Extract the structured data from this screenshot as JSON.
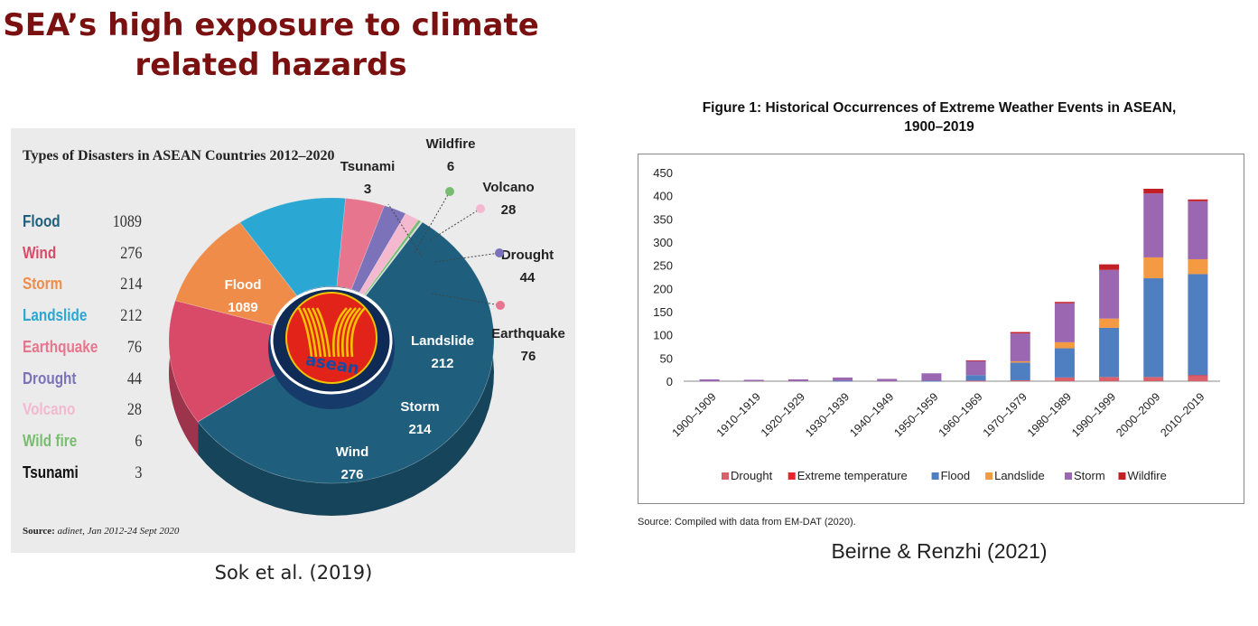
{
  "slide": {
    "title_line1": "SEA’s high exposure to climate",
    "title_line2": "related hazards",
    "caption_left": "Sok et al. (2019)",
    "caption_right": "Beirne & Renzhi (2021)"
  },
  "chart_data": [
    {
      "type": "pie",
      "title": "Types of Disasters in ASEAN Countries 2012–2020",
      "source_label": "Source:",
      "source_text": "adinet, Jan 2012-24 Sept 2020",
      "center_logo_text": "asean",
      "slices": [
        {
          "label": "Flood",
          "value": 1089,
          "color": "#1f5f7d",
          "legend_label": "Flood"
        },
        {
          "label": "Wind",
          "value": 276,
          "color": "#d84a68",
          "legend_label": "Wind"
        },
        {
          "label": "Storm",
          "value": 214,
          "color": "#ef8c49",
          "legend_label": "Storm"
        },
        {
          "label": "Landslide",
          "value": 212,
          "color": "#2aa7d3",
          "legend_label": "Landslide"
        },
        {
          "label": "Earthquake",
          "value": 76,
          "color": "#e7758d",
          "legend_label": "Earthquake"
        },
        {
          "label": "Drought",
          "value": 44,
          "color": "#7b72b9",
          "legend_label": "Drought"
        },
        {
          "label": "Volcano",
          "value": 28,
          "color": "#f4b8cf",
          "legend_label": "Volcano"
        },
        {
          "label": "Wildfire",
          "value": 6,
          "color": "#78bd6f",
          "legend_label": "Wild fire"
        },
        {
          "label": "Tsunami",
          "value": 3,
          "color": "#d9d9d9",
          "legend_label": "Tsunami"
        }
      ],
      "legend_colors": [
        "#1f5f7d",
        "#d84a68",
        "#ef8c49",
        "#2aa7d3",
        "#e7758d",
        "#7b72b9",
        "#f4b8cf",
        "#78bd6f",
        "#111111"
      ]
    },
    {
      "type": "bar",
      "stacked": true,
      "title_line1": "Figure 1: Historical Occurrences of Extreme Weather Events in ASEAN,",
      "title_line2": "1900–2019",
      "source": "Source: Compiled with data from EM-DAT (2020).",
      "categories": [
        "1900–1909",
        "1910–1919",
        "1920–1929",
        "1930–1939",
        "1940–1949",
        "1950–1959",
        "1960–1969",
        "1970–1979",
        "1980–1989",
        "1990–1999",
        "2000–2009",
        "2010–2019"
      ],
      "ylim": [
        0,
        450
      ],
      "yticks": [
        0,
        50,
        100,
        150,
        200,
        250,
        300,
        350,
        400,
        450
      ],
      "series": [
        {
          "name": "Drought",
          "color": "#d9606a",
          "values": [
            0,
            0,
            0,
            0,
            0,
            0,
            1,
            2,
            8,
            9,
            9,
            12
          ]
        },
        {
          "name": "Extreme temperature",
          "color": "#e8242b",
          "values": [
            0,
            0,
            0,
            0,
            0,
            0,
            0,
            0,
            0,
            0,
            0,
            1
          ]
        },
        {
          "name": "Flood",
          "color": "#4f7ec1",
          "values": [
            0,
            0,
            0,
            1,
            0,
            1,
            12,
            38,
            63,
            106,
            213,
            218
          ]
        },
        {
          "name": "Landslide",
          "color": "#f39a43",
          "values": [
            0,
            0,
            0,
            0,
            0,
            0,
            0,
            3,
            13,
            20,
            45,
            32
          ]
        },
        {
          "name": "Storm",
          "color": "#9b67b1",
          "values": [
            4,
            3,
            4,
            7,
            5,
            16,
            31,
            60,
            84,
            105,
            138,
            125
          ]
        },
        {
          "name": "Wildfire",
          "color": "#c22026",
          "values": [
            0,
            0,
            0,
            0,
            0,
            0,
            1,
            3,
            3,
            12,
            10,
            4
          ]
        }
      ]
    }
  ]
}
